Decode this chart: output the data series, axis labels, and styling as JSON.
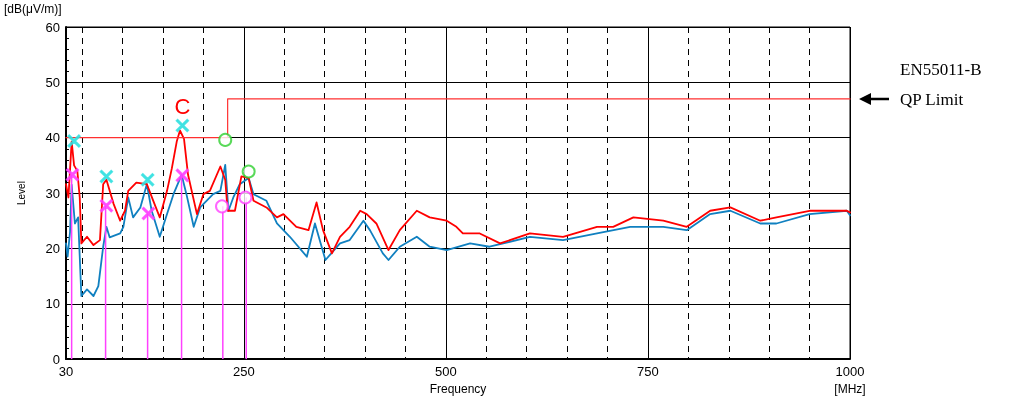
{
  "chart_data": {
    "type": "line",
    "xlabel": "Frequency",
    "ylabel": "Level",
    "annotations": [
      "[dB(μV/m)]",
      "[MHz]",
      {
        "text": "C",
        "x": 174,
        "y": 42.2
      }
    ],
    "xlim": [
      30,
      1000
    ],
    "ylim": [
      0,
      60
    ],
    "xticks": [
      30,
      {
        "value": 50,
        "label": null
      },
      {
        "value": 100,
        "label": null
      },
      {
        "value": 150,
        "label": null
      },
      {
        "value": 200,
        "label": null
      },
      250,
      {
        "value": 300,
        "label": null
      },
      {
        "value": 350,
        "label": null
      },
      {
        "value": 400,
        "label": null
      },
      {
        "value": 450,
        "label": null
      },
      500,
      {
        "value": 550,
        "label": null
      },
      {
        "value": 600,
        "label": null
      },
      {
        "value": 650,
        "label": null
      },
      {
        "value": 700,
        "label": null
      },
      750,
      {
        "value": 800,
        "label": null
      },
      {
        "value": 850,
        "label": null
      },
      {
        "value": 900,
        "label": null
      },
      {
        "value": 950,
        "label": null
      },
      1000
    ],
    "yticks": [
      0,
      10,
      20,
      30,
      40,
      50,
      60
    ],
    "grid": true,
    "series": [
      {
        "color": "#1080c0",
        "marker": "none",
        "x": [
          30,
          32,
          35,
          37,
          41,
          45,
          49,
          56,
          64,
          70,
          76,
          80,
          84,
          97,
          101,
          107,
          113,
          122,
          130,
          136,
          146,
          155,
          163,
          173,
          179,
          188,
          196,
          212,
          221,
          227,
          231,
          237,
          245,
          256,
          262,
          278,
          291,
          307,
          328,
          338,
          351,
          369,
          381,
          398,
          406,
          422,
          429,
          443,
          464,
          480,
          501,
          530,
          554,
          571,
          604,
          645,
          687,
          728,
          769,
          798,
          827,
          852,
          889,
          909,
          950,
          996,
          1000
        ],
        "values": [
          20.9,
          18.5,
          23,
          31.5,
          24.5,
          25.6,
          11.4,
          12.6,
          11.4,
          13.2,
          20.3,
          23.9,
          22,
          22.7,
          23.9,
          29.2,
          25.6,
          27.4,
          31.6,
          26.8,
          22.1,
          26.2,
          29.8,
          33.3,
          29.8,
          23.9,
          27.4,
          29.8,
          30.4,
          35.1,
          26.8,
          29.2,
          31.6,
          32.7,
          29.8,
          28.6,
          24.5,
          22.1,
          18.5,
          24.5,
          17.9,
          20.9,
          21.5,
          25,
          23.3,
          19.1,
          17.9,
          20.3,
          22.1,
          20.3,
          19.7,
          20.9,
          20.3,
          20.9,
          22.1,
          21.5,
          22.7,
          23.9,
          23.9,
          23.3,
          26.2,
          26.8,
          24.5,
          24.5,
          26.2,
          26.8,
          26
        ]
      },
      {
        "color": "#ff0000",
        "marker": "none",
        "x": [
          30,
          33,
          37,
          40,
          44,
          47,
          49,
          56,
          64,
          72,
          76,
          80,
          89,
          97,
          103,
          107,
          117,
          130,
          138,
          146,
          155,
          161,
          167,
          171,
          176,
          181,
          192,
          200,
          208,
          221,
          227,
          230,
          239,
          247,
          256,
          262,
          278,
          291,
          299,
          315,
          330,
          340,
          348,
          359,
          369,
          381,
          394,
          402,
          414,
          429,
          443,
          464,
          480,
          501,
          513,
          521,
          542,
          567,
          604,
          645,
          687,
          707,
          732,
          769,
          798,
          827,
          852,
          889,
          909,
          950,
          996,
          1000
        ],
        "values": [
          31.6,
          29.2,
          39.3,
          35,
          34,
          29.2,
          20.9,
          22.1,
          20.6,
          21.5,
          31.6,
          32.4,
          28,
          25,
          26.8,
          30.4,
          31.9,
          31.6,
          28.6,
          25.6,
          30.4,
          34.5,
          39.3,
          41.3,
          39.8,
          33.3,
          26.2,
          29.8,
          30.4,
          34.8,
          32.4,
          26.8,
          26.8,
          33,
          32.7,
          28.6,
          27.4,
          25.6,
          26.2,
          23.9,
          23.3,
          28.3,
          23.3,
          19.1,
          22.1,
          23.9,
          26.8,
          26.2,
          24.5,
          19.7,
          23.3,
          26.8,
          25.6,
          25,
          23.9,
          22.7,
          22.7,
          20.9,
          22.7,
          22.1,
          23.9,
          23.9,
          25.6,
          25,
          23.9,
          26.8,
          27.4,
          25,
          25.6,
          26.8,
          26.8,
          26.5
        ]
      },
      {
        "name": "EN55011-B QP Limit",
        "color": "#ff3030",
        "marker": "none",
        "x": [
          30,
          230,
          230,
          1000
        ],
        "values": [
          40,
          40,
          47,
          47
        ]
      },
      {
        "type": "lollipop",
        "color": "#ff40ff",
        "marker": "cross",
        "x": [
          38,
          80,
          132,
          174
        ],
        "values": [
          33.3,
          27.7,
          26.3,
          33.2
        ]
      },
      {
        "type": "lollipop",
        "color": "#ff40ff",
        "marker": "circle",
        "x": [
          223,
          252
        ],
        "values": [
          27.6,
          29.2
        ]
      },
      {
        "type": "scatter",
        "color": "#30e0e0",
        "marker": "cross",
        "x": [
          40,
          80,
          131,
          174
        ],
        "values": [
          39.4,
          33,
          32.4,
          42.2
        ]
      },
      {
        "type": "scatter",
        "color": "#30d030",
        "marker": "circle",
        "x": [
          227,
          256
        ],
        "values": [
          39.6,
          33.9
        ]
      }
    ]
  }
}
